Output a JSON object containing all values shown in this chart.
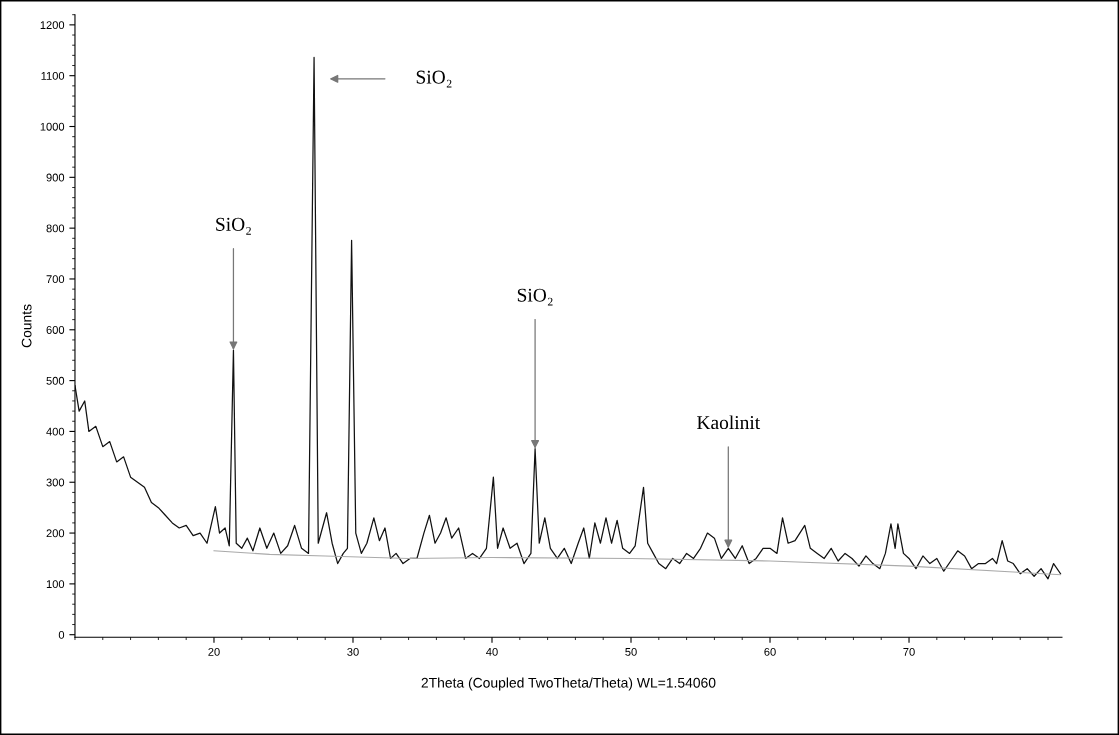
{
  "chart_data": {
    "type": "line",
    "xlabel": "2Theta (Coupled TwoTheta/Theta) WL=1.54060",
    "ylabel": "Counts",
    "xlim": [
      10,
      81
    ],
    "xticks": [
      20,
      30,
      40,
      50,
      60,
      70
    ],
    "ylim": [
      -5,
      1220
    ],
    "yticks": [
      0,
      100,
      200,
      300,
      400,
      500,
      600,
      700,
      800,
      900,
      1000,
      1100,
      1200
    ],
    "grid": false,
    "legend": false,
    "series": [
      {
        "color": "#111111",
        "x": [
          10,
          10.3,
          10.7,
          11,
          11.5,
          12,
          12.5,
          13,
          13.5,
          14,
          14.5,
          15,
          15.5,
          16,
          16.5,
          17,
          17.5,
          18,
          18.5,
          19,
          19.5,
          20.1,
          20.4,
          20.8,
          21.1,
          21.4,
          21.6,
          22,
          22.4,
          22.8,
          23.3,
          23.8,
          24.3,
          24.8,
          25.3,
          25.8,
          26.3,
          26.8,
          27.2,
          27.5,
          27.8,
          28.1,
          28.5,
          28.9,
          29.3,
          29.6,
          29.9,
          30.2,
          30.6,
          31.0,
          31.5,
          31.9,
          32.3,
          32.7,
          33.1,
          33.6,
          34.1,
          34.6,
          35.1,
          35.5,
          35.9,
          36.3,
          36.7,
          37.1,
          37.6,
          38.1,
          38.6,
          39.1,
          39.6,
          40.1,
          40.4,
          40.8,
          41.3,
          41.8,
          42.3,
          42.8,
          43.1,
          43.4,
          43.8,
          44.2,
          44.7,
          45.2,
          45.7,
          46.2,
          46.6,
          47.0,
          47.4,
          47.8,
          48.2,
          48.6,
          49.0,
          49.4,
          49.9,
          50.3,
          50.9,
          51.2,
          51.6,
          52.0,
          52.5,
          53.0,
          53.5,
          54.0,
          54.5,
          55.0,
          55.5,
          56.0,
          56.5,
          57.0,
          57.5,
          58.0,
          58.5,
          59.0,
          59.5,
          60.0,
          60.5,
          60.9,
          61.3,
          61.8,
          62.5,
          62.9,
          63.4,
          63.9,
          64.4,
          64.9,
          65.4,
          65.9,
          66.4,
          66.9,
          67.4,
          67.9,
          68.3,
          68.7,
          69.0,
          69.2,
          69.6,
          70.0,
          70.5,
          71.0,
          71.5,
          72.0,
          72.5,
          73.0,
          73.5,
          74.0,
          74.5,
          75.0,
          75.5,
          76.0,
          76.3,
          76.7,
          77.1,
          77.5,
          78.0,
          78.5,
          79.0,
          79.5,
          80.0,
          80.4,
          80.9
        ],
        "values": [
          490,
          440,
          460,
          400,
          410,
          370,
          380,
          340,
          350,
          310,
          300,
          290,
          260,
          250,
          235,
          220,
          210,
          215,
          195,
          200,
          180,
          252,
          200,
          210,
          175,
          560,
          180,
          170,
          190,
          165,
          210,
          170,
          200,
          160,
          175,
          215,
          170,
          160,
          1136,
          180,
          210,
          240,
          180,
          140,
          160,
          170,
          776,
          200,
          160,
          180,
          230,
          185,
          210,
          150,
          160,
          140,
          150,
          150,
          200,
          235,
          180,
          200,
          230,
          190,
          210,
          150,
          160,
          150,
          170,
          310,
          170,
          210,
          170,
          180,
          140,
          160,
          366,
          180,
          230,
          170,
          150,
          170,
          140,
          180,
          210,
          150,
          220,
          180,
          230,
          180,
          225,
          170,
          160,
          175,
          290,
          180,
          160,
          140,
          130,
          150,
          140,
          160,
          150,
          170,
          200,
          190,
          150,
          170,
          150,
          175,
          140,
          150,
          170,
          170,
          160,
          230,
          180,
          185,
          215,
          170,
          160,
          150,
          170,
          145,
          160,
          150,
          135,
          155,
          140,
          130,
          160,
          218,
          170,
          218,
          160,
          150,
          130,
          155,
          140,
          150,
          125,
          145,
          165,
          155,
          130,
          140,
          140,
          150,
          140,
          185,
          145,
          140,
          120,
          130,
          115,
          130,
          110,
          140,
          120
        ]
      },
      {
        "color": "#aaaaaa",
        "x": [
          20,
          24,
          28,
          34,
          40,
          50,
          60,
          70,
          80.9
        ],
        "values": [
          165,
          158,
          155,
          150,
          152,
          150,
          145,
          135,
          118
        ]
      }
    ],
    "annotations": [
      {
        "text": "SiO₂",
        "x": 21.4,
        "y": 560
      },
      "SiO₂",
      {
        "text": "SiO₂",
        "x": 43.1,
        "y": 366
      },
      {
        "text": "Kaolinit",
        "x": 57.0,
        "y": 170
      }
    ]
  }
}
